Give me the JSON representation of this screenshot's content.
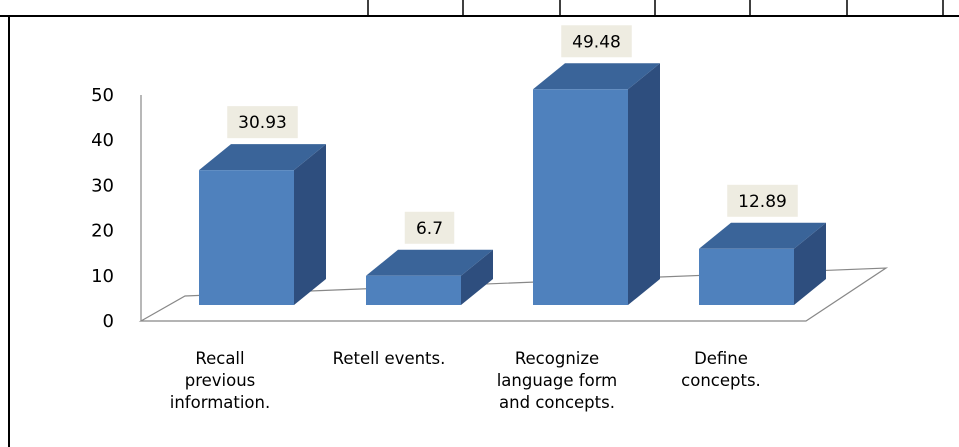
{
  "chart_data": {
    "type": "bar",
    "categories": [
      [
        "Recall",
        "previous",
        "information."
      ],
      [
        "Retell events."
      ],
      [
        "Recognize",
        "language form",
        "and concepts."
      ],
      [
        "Define",
        "concepts."
      ]
    ],
    "values": [
      30.93,
      6.7,
      49.48,
      12.89
    ],
    "data_labels": [
      "30.93",
      "6.7",
      "49.48",
      "12.89"
    ],
    "y_ticks": [
      "0",
      "10",
      "20",
      "30",
      "40",
      "50"
    ],
    "ylim": [
      0,
      50
    ],
    "bar_style": "3d-column",
    "grid": false,
    "legend": "none",
    "colors": {
      "bar_front": "#4F81BD",
      "bar_side": "#2E4E7E",
      "bar_top": "#3A6499",
      "label_bg": "#EEECE1",
      "axis": "#888888"
    }
  }
}
